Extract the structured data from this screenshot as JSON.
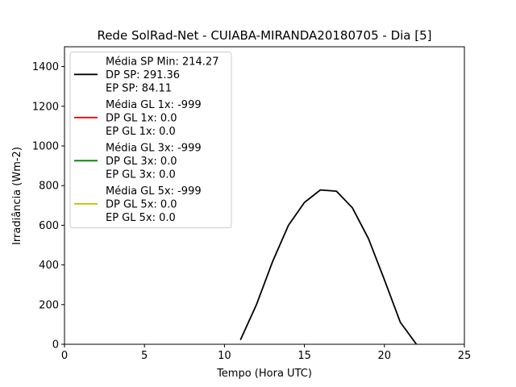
{
  "chart_data": {
    "type": "line",
    "title": "Rede SolRad-Net - CUIABA-MIRANDA20180705 - Dia [5]",
    "xlabel": "Tempo (Hora UTC)",
    "ylabel": "Irradiância (Wm-2)",
    "xlim": [
      0,
      25
    ],
    "ylim": [
      0,
      1500
    ],
    "xticks": [
      0,
      5,
      10,
      15,
      20,
      25
    ],
    "yticks": [
      0,
      200,
      400,
      600,
      800,
      1000,
      1200,
      1400
    ],
    "grid": false,
    "legend_position": "top-left",
    "series": [
      {
        "color": "#000000",
        "legend": [
          "Média SP Min: 214.27",
          "DP SP: 291.36",
          "EP SP: 84.11"
        ],
        "x": [
          11,
          12,
          13,
          14,
          15,
          16,
          17,
          18,
          19,
          20,
          21,
          22
        ],
        "y": [
          22,
          200,
          415,
          600,
          715,
          778,
          772,
          688,
          533,
          325,
          110,
          0
        ]
      },
      {
        "color": "#ff0000",
        "legend": [
          "Média GL 1x: -999",
          "DP GL 1x: 0.0",
          "EP GL 1x: 0.0"
        ],
        "x": [],
        "y": []
      },
      {
        "color": "#008000",
        "legend": [
          "Média GL 3x: -999",
          "DP GL 3x: 0.0",
          "EP GL 3x: 0.0"
        ],
        "x": [],
        "y": []
      },
      {
        "color": "#ccbb00",
        "legend": [
          "Média GL 5x: -999",
          "DP GL 5x: 0.0",
          "EP GL 5x: 0.0"
        ],
        "x": [],
        "y": []
      }
    ]
  }
}
